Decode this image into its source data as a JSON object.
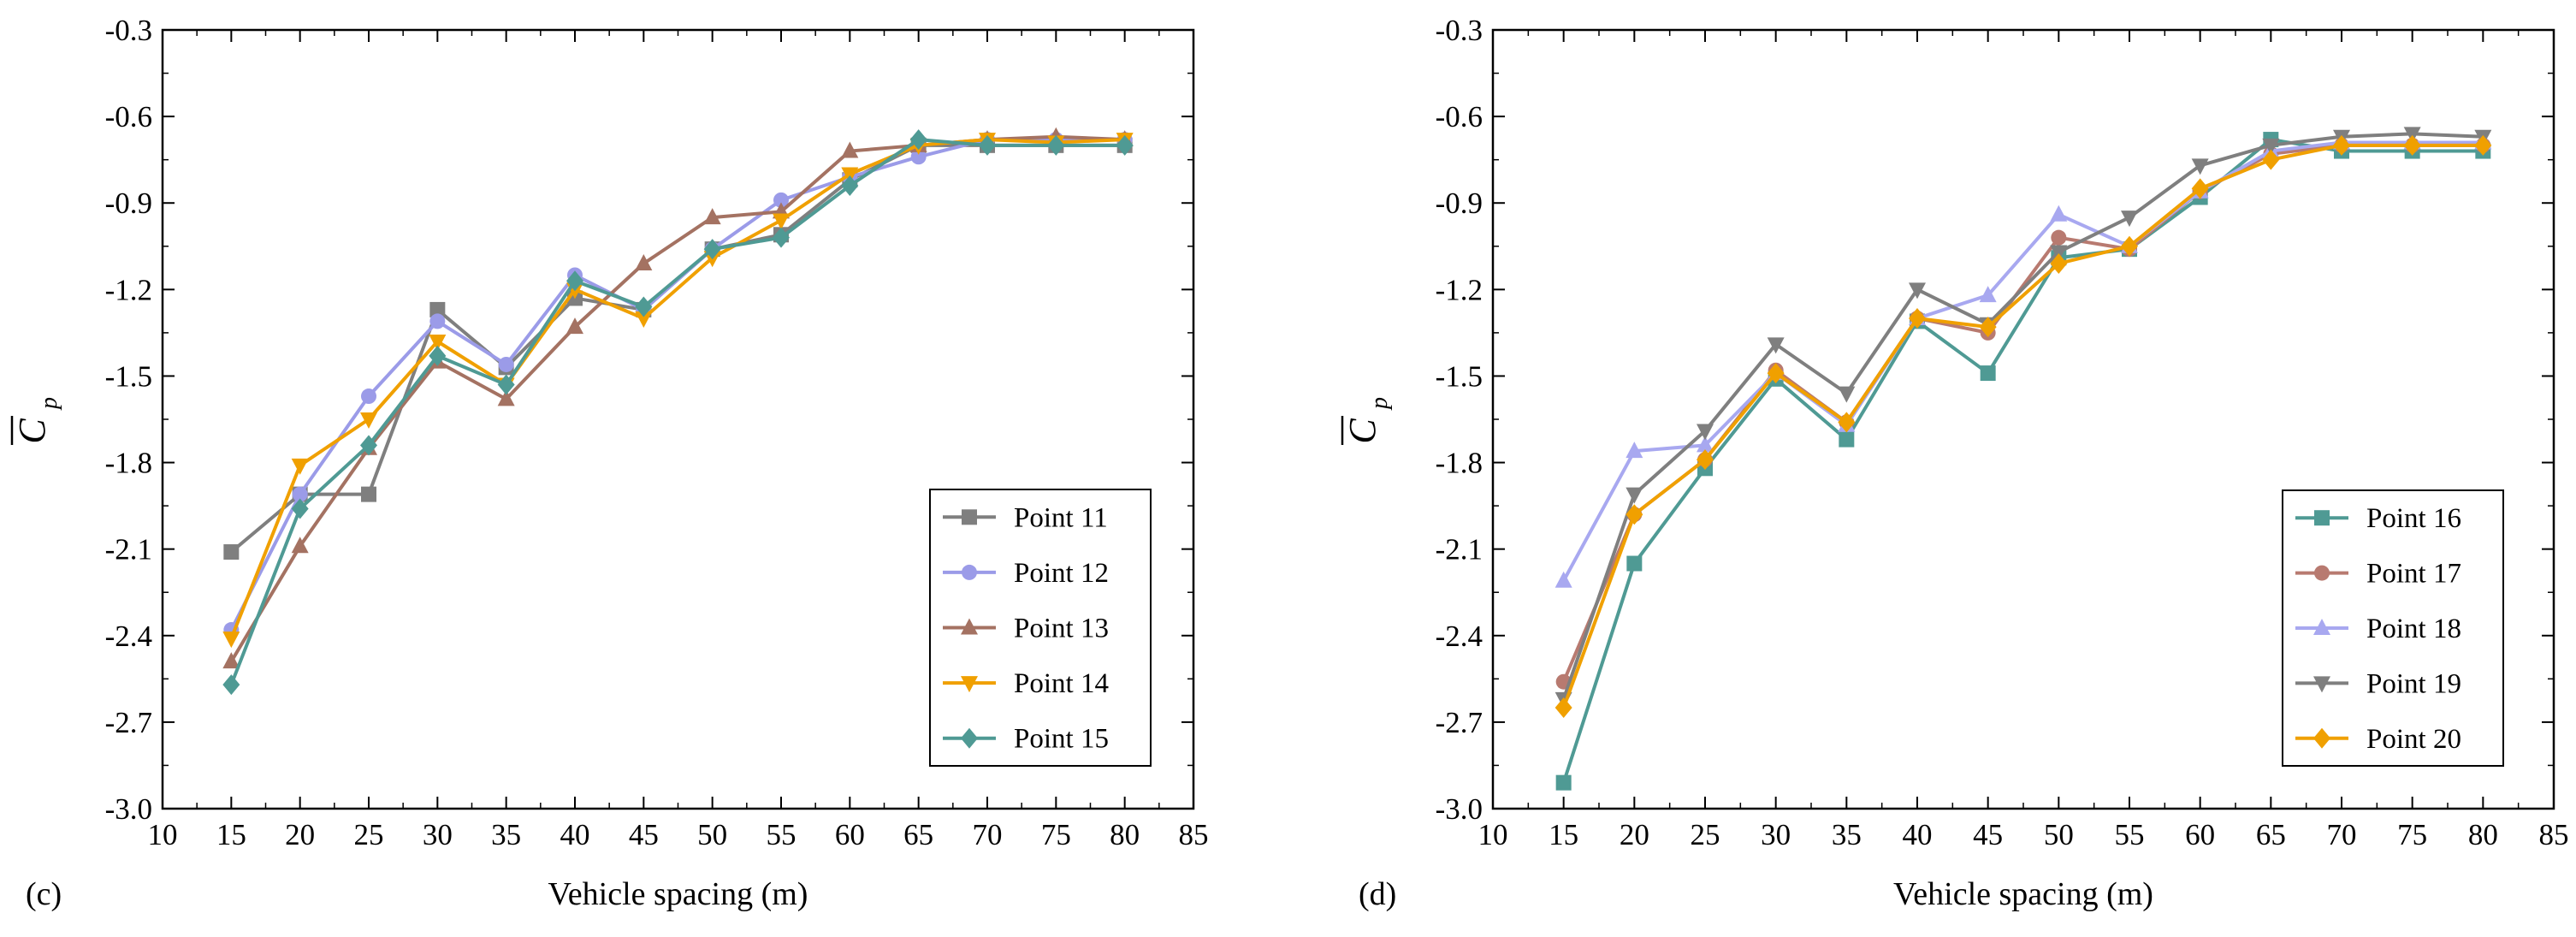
{
  "chart_data": [
    {
      "type": "line",
      "panel_label": "(c)",
      "xlabel": "Vehicle spacing (m)",
      "ylabel": {
        "main": "C",
        "sub": "p",
        "overline": true
      },
      "xlim": [
        10,
        85
      ],
      "ylim": [
        -3.0,
        -0.3
      ],
      "xticks": [
        10,
        15,
        20,
        25,
        30,
        35,
        40,
        45,
        50,
        55,
        60,
        65,
        70,
        75,
        80,
        85
      ],
      "yticks": [
        -3.0,
        -2.7,
        -2.4,
        -2.1,
        -1.8,
        -1.5,
        -1.2,
        -0.9,
        -0.6,
        -0.3
      ],
      "ytick_labels": [
        "-3.0",
        "-2.7",
        "-2.4",
        "-2.1",
        "-1.8",
        "-1.5",
        "-1.2",
        "-0.9",
        "-0.6",
        "-0.3"
      ],
      "legend_position": "bottom-right",
      "x": [
        15,
        20,
        25,
        30,
        35,
        40,
        45,
        50,
        55,
        60,
        65,
        70,
        75,
        80
      ],
      "series": [
        {
          "name": "Point 11",
          "color": "#7f7f7f",
          "marker": "square",
          "values": [
            -2.11,
            -1.91,
            -1.91,
            -1.27,
            -1.47,
            -1.23,
            -1.27,
            -1.06,
            -1.01,
            -0.82,
            -0.7,
            -0.7,
            -0.7,
            -0.7
          ]
        },
        {
          "name": "Point 12",
          "color": "#9b9be8",
          "marker": "circle",
          "values": [
            -2.38,
            -1.91,
            -1.57,
            -1.31,
            -1.46,
            -1.15,
            -1.27,
            -1.06,
            -0.89,
            -0.81,
            -0.74,
            -0.68,
            -0.68,
            -0.68
          ]
        },
        {
          "name": "Point 13",
          "color": "#a47262",
          "marker": "triangle-up",
          "values": [
            -2.49,
            -2.09,
            -1.75,
            -1.45,
            -1.58,
            -1.33,
            -1.11,
            -0.95,
            -0.93,
            -0.72,
            -0.7,
            -0.68,
            -0.67,
            -0.68
          ]
        },
        {
          "name": "Point 14",
          "color": "#f0a000",
          "marker": "triangle-down",
          "values": [
            -2.41,
            -1.81,
            -1.65,
            -1.38,
            -1.53,
            -1.2,
            -1.3,
            -1.09,
            -0.96,
            -0.8,
            -0.7,
            -0.68,
            -0.69,
            -0.68
          ]
        },
        {
          "name": "Point 15",
          "color": "#4f9a94",
          "marker": "diamond",
          "values": [
            -2.57,
            -1.96,
            -1.74,
            -1.43,
            -1.53,
            -1.17,
            -1.26,
            -1.06,
            -1.02,
            -0.84,
            -0.68,
            -0.7,
            -0.7,
            -0.7
          ]
        }
      ]
    },
    {
      "type": "line",
      "panel_label": "(d)",
      "xlabel": "Vehicle spacing (m)",
      "ylabel": {
        "main": "C",
        "sub": "p",
        "overline": true
      },
      "xlim": [
        10,
        85
      ],
      "ylim": [
        -3.0,
        -0.3
      ],
      "xticks": [
        10,
        15,
        20,
        25,
        30,
        35,
        40,
        45,
        50,
        55,
        60,
        65,
        70,
        75,
        80,
        85
      ],
      "yticks": [
        -3.0,
        -2.7,
        -2.4,
        -2.1,
        -1.8,
        -1.5,
        -1.2,
        -0.9,
        -0.6,
        -0.3
      ],
      "ytick_labels": [
        "-3.0",
        "-2.7",
        "-2.4",
        "-2.1",
        "-1.8",
        "-1.5",
        "-1.2",
        "-0.9",
        "-0.6",
        "-0.3"
      ],
      "legend_position": "bottom-right",
      "x": [
        15,
        20,
        25,
        30,
        35,
        40,
        45,
        50,
        55,
        60,
        65,
        70,
        75,
        80
      ],
      "series": [
        {
          "name": "Point 16",
          "color": "#4f9a94",
          "marker": "square",
          "values": [
            -2.91,
            -2.15,
            -1.82,
            -1.51,
            -1.72,
            -1.31,
            -1.49,
            -1.09,
            -1.06,
            -0.88,
            -0.68,
            -0.72,
            -0.72,
            -0.72
          ]
        },
        {
          "name": "Point 17",
          "color": "#b87a70",
          "marker": "circle",
          "values": [
            -2.56,
            -1.98,
            -1.79,
            -1.48,
            -1.66,
            -1.3,
            -1.35,
            -1.02,
            -1.06,
            -0.86,
            -0.73,
            -0.7,
            -0.7,
            -0.7
          ]
        },
        {
          "name": "Point 18",
          "color": "#a8a8f0",
          "marker": "triangle-up",
          "values": [
            -2.21,
            -1.76,
            -1.74,
            -1.49,
            -1.67,
            -1.3,
            -1.22,
            -0.94,
            -1.05,
            -0.86,
            -0.72,
            -0.69,
            -0.69,
            -0.69
          ]
        },
        {
          "name": "Point 19",
          "color": "#7f7f7f",
          "marker": "triangle-down",
          "values": [
            -2.62,
            -1.91,
            -1.69,
            -1.39,
            -1.56,
            -1.2,
            -1.32,
            -1.07,
            -0.95,
            -0.77,
            -0.7,
            -0.67,
            -0.66,
            -0.67
          ]
        },
        {
          "name": "Point 20",
          "color": "#f0a000",
          "marker": "diamond",
          "values": [
            -2.65,
            -1.98,
            -1.79,
            -1.49,
            -1.66,
            -1.3,
            -1.33,
            -1.11,
            -1.05,
            -0.85,
            -0.75,
            -0.7,
            -0.7,
            -0.7
          ]
        }
      ]
    }
  ]
}
